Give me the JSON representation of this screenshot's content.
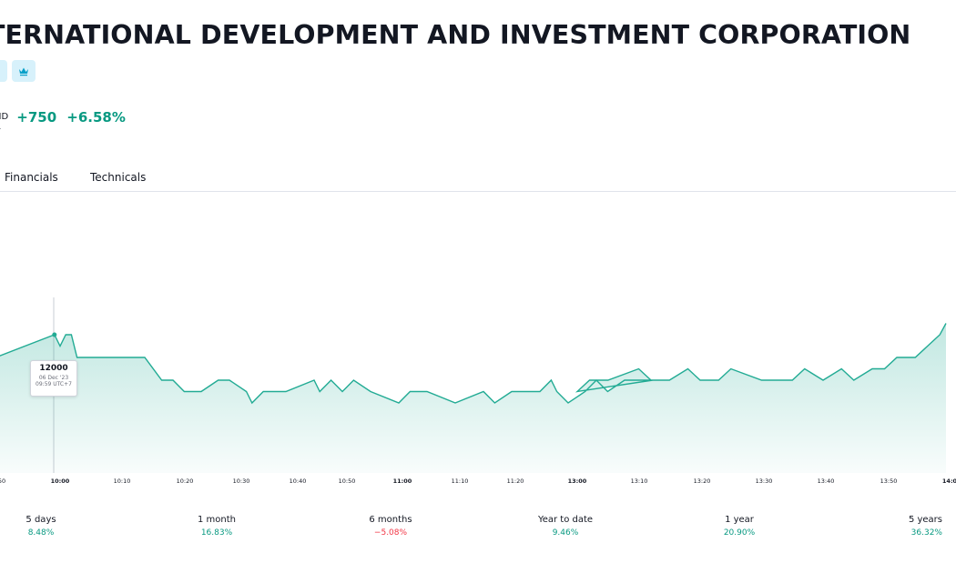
{
  "header": {
    "title": "TERNATIONAL DEVELOPMENT AND INVESTMENT CORPORATION",
    "badges": [
      {
        "icon": "chevron-icon",
        "text": ""
      },
      {
        "icon": "crown-icon",
        "text": ""
      }
    ]
  },
  "quote": {
    "currency": "ND",
    "change": "+750",
    "change_percent": "+6.58%",
    "positive_color": "#089981",
    "negative_color": "#f23645"
  },
  "tabs": [
    {
      "label": "Financials"
    },
    {
      "label": "Technicals"
    }
  ],
  "chart_data": {
    "type": "area",
    "x": [
      "09:59",
      "10:00",
      "10:01",
      "10:02",
      "10:03",
      "10:05",
      "10:08",
      "10:10",
      "10:15",
      "10:18",
      "10:20",
      "10:22",
      "10:25",
      "10:28",
      "10:30",
      "10:33",
      "10:34",
      "10:36",
      "10:40",
      "10:45",
      "10:46",
      "10:48",
      "10:50",
      "10:52",
      "10:55",
      "11:00",
      "11:02",
      "11:05",
      "11:10",
      "11:15",
      "11:17",
      "11:20",
      "11:25",
      "11:27",
      "11:28",
      "11:30",
      "11:33",
      "11:35",
      "11:37",
      "11:40",
      "11:45",
      "13:00",
      "13:02",
      "13:05",
      "13:10",
      "13:12",
      "13:15",
      "13:18",
      "13:20",
      "13:23",
      "13:25",
      "13:30",
      "13:33",
      "13:35",
      "13:37",
      "13:40",
      "13:43",
      "13:45",
      "13:48",
      "13:50",
      "13:52",
      "13:55",
      "13:57",
      "13:59",
      "14:00"
    ],
    "y": [
      12000,
      11950,
      12000,
      12000,
      11900,
      11900,
      11900,
      11900,
      11900,
      11800,
      11800,
      11750,
      11750,
      11800,
      11800,
      11750,
      11700,
      11750,
      11750,
      11800,
      11750,
      11800,
      11750,
      11800,
      11750,
      11700,
      11750,
      11750,
      11700,
      11750,
      11700,
      11750,
      11750,
      11800,
      11750,
      11700,
      11750,
      11800,
      11750,
      11800,
      11800,
      11750,
      11800,
      11800,
      11850,
      11800,
      11800,
      11850,
      11800,
      11800,
      11850,
      11800,
      11800,
      11800,
      11850,
      11800,
      11850,
      11800,
      11850,
      11850,
      11900,
      11900,
      11950,
      12000,
      12050
    ],
    "x_ticks": [
      "50",
      "10:00",
      "10:10",
      "10:20",
      "10:30",
      "10:40",
      "10:50",
      "11:00",
      "11:10",
      "11:20",
      "13:00",
      "13:10",
      "13:20",
      "13:30",
      "13:40",
      "13:50",
      "14:0"
    ],
    "bold_ticks": [
      "10:00",
      "11:00",
      "13:00",
      "14:0"
    ],
    "line_color": "#22ab94",
    "fill_color": "#22ab94",
    "tooltip": {
      "value": "12000",
      "date": "06 Dec '23",
      "time": "09:59 UTC+7"
    }
  },
  "periods": [
    {
      "label": "5 days",
      "value": "8.48%",
      "positive": true
    },
    {
      "label": "1 month",
      "value": "16.83%",
      "positive": true
    },
    {
      "label": "6 months",
      "value": "−5.08%",
      "positive": false
    },
    {
      "label": "Year to date",
      "value": "9.46%",
      "positive": true
    },
    {
      "label": "1 year",
      "value": "20.90%",
      "positive": true
    },
    {
      "label": "5 years",
      "value": "36.32%",
      "positive": true
    }
  ]
}
